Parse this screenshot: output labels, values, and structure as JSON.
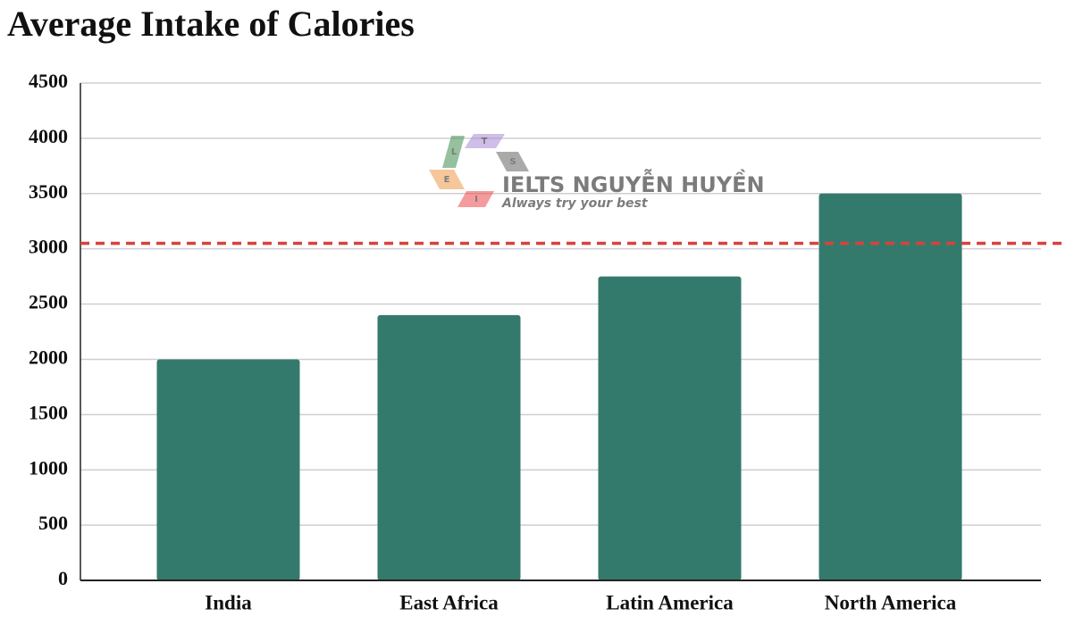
{
  "chart_data": {
    "type": "bar",
    "title": "Average Intake of Calories",
    "categories": [
      "India",
      "East Africa",
      "Latin America",
      "North America"
    ],
    "values": [
      2000,
      2400,
      2750,
      3500
    ],
    "color": "#347a6c",
    "ylim": [
      0,
      4500
    ],
    "yticks": [
      0,
      500,
      1000,
      1500,
      2000,
      2500,
      3000,
      3500,
      4000,
      4500
    ],
    "grid": true,
    "reference_line": {
      "value": 3050,
      "color": "#d9413b",
      "style": "dashed"
    },
    "watermark": {
      "name": "IELTS NGUYỄN HUYỀN",
      "tagline": "Always try your best",
      "logo_letters": [
        "L",
        "T",
        "S",
        "E",
        "I"
      ]
    }
  }
}
